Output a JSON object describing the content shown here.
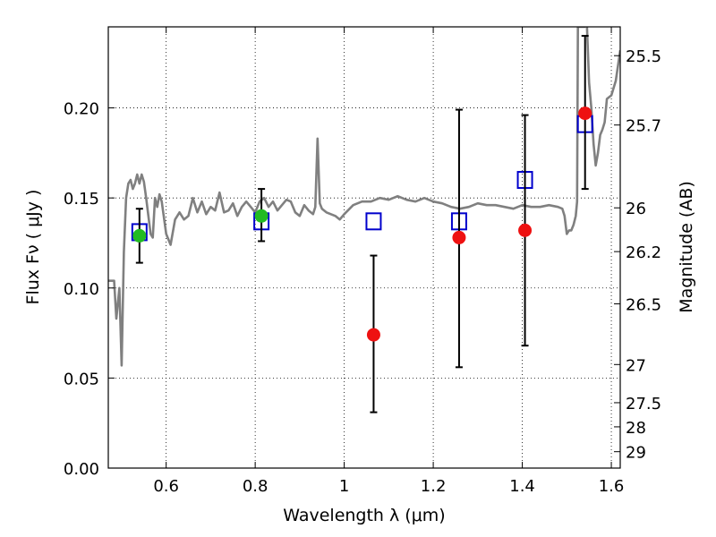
{
  "chart_data": {
    "type": "scatter",
    "title": "",
    "xlabel": "Wavelength  λ (μm)",
    "ylabel": "Flux  Fν  ( μJy )",
    "ylabel_right": "Magnitude (AB)",
    "xlim": [
      0.47,
      1.62
    ],
    "ylim": [
      0.0,
      0.245
    ],
    "grid": true,
    "legend": "none",
    "x_ticks": [
      0.6,
      0.8,
      1.0,
      1.2,
      1.4,
      1.6
    ],
    "x_tick_labels": [
      "0.6",
      "0.8",
      "1",
      "1.2",
      "1.4",
      "1.6"
    ],
    "y_ticks": [
      0.0,
      0.05,
      0.1,
      0.15,
      0.2
    ],
    "y_tick_labels": [
      "0.00",
      "0.05",
      "0.10",
      "0.15",
      "0.20"
    ],
    "right_ticks": [
      {
        "label": "25.5",
        "flux": 0.229
      },
      {
        "label": "25.7",
        "flux": 0.1905
      },
      {
        "label": "26",
        "flux": 0.1445
      },
      {
        "label": "26.2",
        "flux": 0.1202
      },
      {
        "label": "26.5",
        "flux": 0.0912
      },
      {
        "label": "27",
        "flux": 0.0575
      },
      {
        "label": "27.5",
        "flux": 0.0363
      },
      {
        "label": "28",
        "flux": 0.0229
      },
      {
        "label": "29",
        "flux": 0.0091
      }
    ],
    "series": [
      {
        "kind": "line",
        "color": "#808080",
        "x": [
          0.47,
          0.483,
          0.488,
          0.495,
          0.5,
          0.505,
          0.51,
          0.515,
          0.52,
          0.525,
          0.53,
          0.535,
          0.54,
          0.545,
          0.55,
          0.555,
          0.56,
          0.565,
          0.57,
          0.575,
          0.58,
          0.585,
          0.59,
          0.6,
          0.61,
          0.62,
          0.63,
          0.64,
          0.65,
          0.66,
          0.67,
          0.68,
          0.69,
          0.7,
          0.71,
          0.72,
          0.73,
          0.74,
          0.75,
          0.76,
          0.77,
          0.78,
          0.79,
          0.8,
          0.81,
          0.82,
          0.83,
          0.84,
          0.85,
          0.86,
          0.87,
          0.88,
          0.89,
          0.9,
          0.91,
          0.92,
          0.93,
          0.935,
          0.94,
          0.945,
          0.95,
          0.96,
          0.97,
          0.98,
          0.99,
          1.0,
          1.02,
          1.04,
          1.06,
          1.08,
          1.1,
          1.12,
          1.14,
          1.16,
          1.18,
          1.2,
          1.22,
          1.24,
          1.26,
          1.28,
          1.3,
          1.32,
          1.34,
          1.36,
          1.38,
          1.4,
          1.42,
          1.44,
          1.46,
          1.48,
          1.49,
          1.495,
          1.5,
          1.505,
          1.51,
          1.515,
          1.52,
          1.523,
          1.525,
          1.53,
          1.535,
          1.54,
          1.545,
          1.55,
          1.555,
          1.56,
          1.565,
          1.57,
          1.575,
          1.58,
          1.585,
          1.59,
          1.6,
          1.61,
          1.62
        ],
        "y": [
          0.104,
          0.104,
          0.083,
          0.1,
          0.057,
          0.12,
          0.15,
          0.158,
          0.16,
          0.155,
          0.158,
          0.163,
          0.158,
          0.163,
          0.159,
          0.15,
          0.14,
          0.13,
          0.128,
          0.15,
          0.145,
          0.152,
          0.148,
          0.13,
          0.124,
          0.138,
          0.142,
          0.138,
          0.14,
          0.15,
          0.142,
          0.148,
          0.141,
          0.145,
          0.143,
          0.153,
          0.142,
          0.143,
          0.147,
          0.14,
          0.145,
          0.148,
          0.145,
          0.142,
          0.148,
          0.15,
          0.145,
          0.148,
          0.143,
          0.146,
          0.149,
          0.148,
          0.142,
          0.14,
          0.146,
          0.143,
          0.141,
          0.145,
          0.183,
          0.147,
          0.144,
          0.142,
          0.141,
          0.14,
          0.138,
          0.141,
          0.146,
          0.148,
          0.148,
          0.15,
          0.149,
          0.151,
          0.149,
          0.148,
          0.15,
          0.148,
          0.147,
          0.145,
          0.144,
          0.145,
          0.147,
          0.146,
          0.146,
          0.145,
          0.144,
          0.146,
          0.145,
          0.145,
          0.146,
          0.145,
          0.144,
          0.14,
          0.13,
          0.132,
          0.132,
          0.135,
          0.14,
          0.148,
          0.245,
          0.245,
          0.245,
          0.245,
          0.247,
          0.214,
          0.2,
          0.18,
          0.168,
          0.175,
          0.185,
          0.188,
          0.192,
          0.205,
          0.207,
          0.215,
          0.232
        ]
      },
      {
        "kind": "points",
        "marker": "open-square",
        "color": "#0000cc",
        "x": [
          0.54,
          0.814,
          1.066,
          1.258,
          1.406,
          1.541
        ],
        "y": [
          0.131,
          0.137,
          0.137,
          0.137,
          0.16,
          0.191
        ]
      },
      {
        "kind": "points",
        "marker": "filled-circle",
        "color": "#22bb22",
        "x": [
          0.54,
          0.814
        ],
        "y": [
          0.129,
          0.14
        ],
        "yerr": [
          [
            0.015,
            0.015
          ],
          [
            0.014,
            0.015
          ]
        ]
      },
      {
        "kind": "points",
        "marker": "filled-circle",
        "color": "#ee1111",
        "x": [
          1.066,
          1.258,
          1.406,
          1.541
        ],
        "y": [
          0.074,
          0.128,
          0.132,
          0.197
        ],
        "yerr": [
          [
            0.043,
            0.044
          ],
          [
            0.072,
            0.071
          ],
          [
            0.064,
            0.064
          ],
          [
            0.042,
            0.043
          ]
        ]
      }
    ]
  }
}
